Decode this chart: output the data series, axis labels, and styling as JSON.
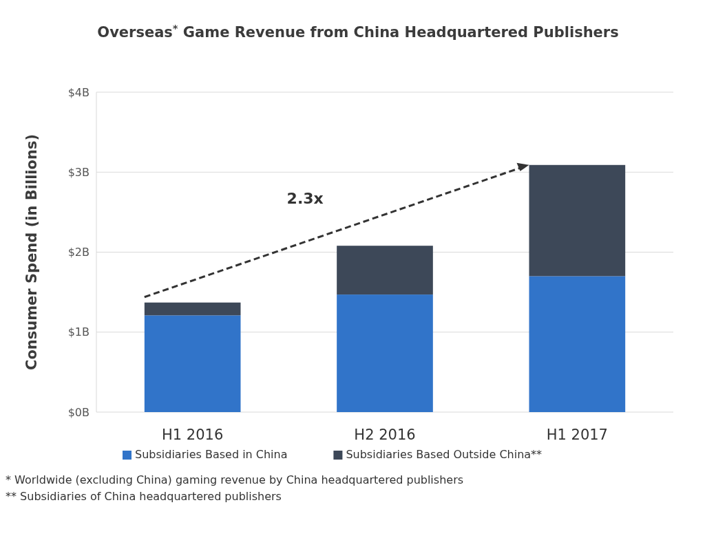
{
  "chart_data": {
    "type": "bar",
    "title": "Overseas$^{*}$ Game Revenue from China Headquartered Publishers",
    "ylabel": "Consumer Spend (in Billions)",
    "categories": [
      "H1 2016",
      "H2 2016",
      "H1 2017"
    ],
    "series": [
      {
        "name": "Subsidiaries Based in China",
        "color": "#3174c9",
        "values": [
          1.21,
          1.47,
          1.7
        ]
      },
      {
        "name": "Subsidiaries Based Outside China**",
        "color": "#3d4858",
        "values": [
          0.16,
          0.61,
          1.39
        ]
      }
    ],
    "stacked": true,
    "ylim": [
      0,
      4
    ],
    "yticks": [
      {
        "value": 0,
        "label": "$0B"
      },
      {
        "value": 1,
        "label": "$1B"
      },
      {
        "value": 2,
        "label": "$2B"
      },
      {
        "value": 3,
        "label": "$3B"
      },
      {
        "value": 4,
        "label": "$4B"
      }
    ],
    "grid": "y",
    "legend": "bottom",
    "annotations": [
      "2.3x",
      "* Worldwide (excluding China) gaming revenue by China headquartered publishers",
      "** Subsidiaries of China headquartered publishers"
    ]
  }
}
